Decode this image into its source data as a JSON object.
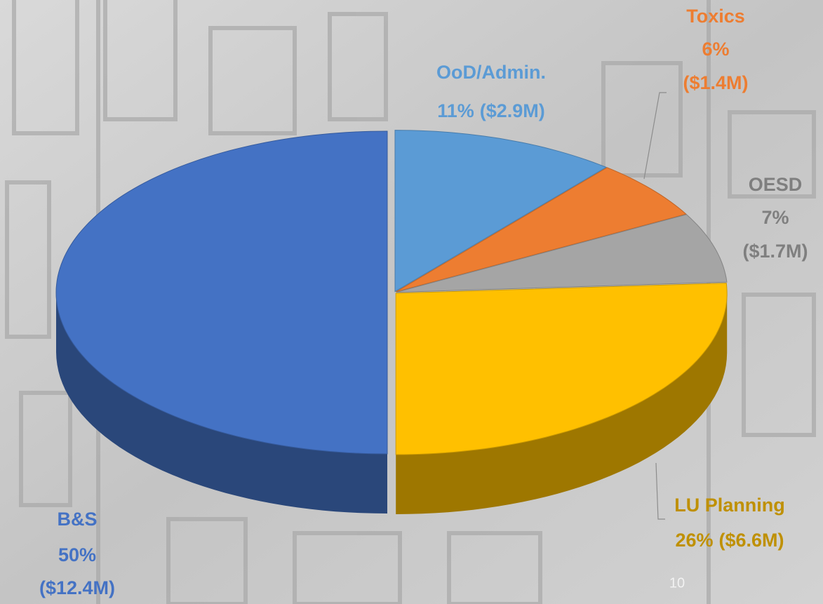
{
  "chart_data": {
    "type": "pie3d",
    "categories": [
      "OoD/Admin.",
      "Toxics",
      "OESD",
      "LU Planning",
      "B&S"
    ],
    "values": [
      11,
      6,
      7,
      26,
      50
    ],
    "value_labels": [
      "11%",
      "6%",
      "7%",
      "26%",
      "50%"
    ],
    "amount_labels": [
      "($2.9M)",
      "($1.4M)",
      "($1.7M)",
      "($6.6M)",
      "($12.4M)"
    ],
    "colors": [
      "#5b9bd5",
      "#ed7d31",
      "#a5a5a5",
      "#ffc000",
      "#4472c4"
    ],
    "label_colors": [
      "#5b9bd5",
      "#ed7d31",
      "#7f7f7f",
      "#bf9000",
      "#4472c4"
    ]
  },
  "page_number": "10"
}
